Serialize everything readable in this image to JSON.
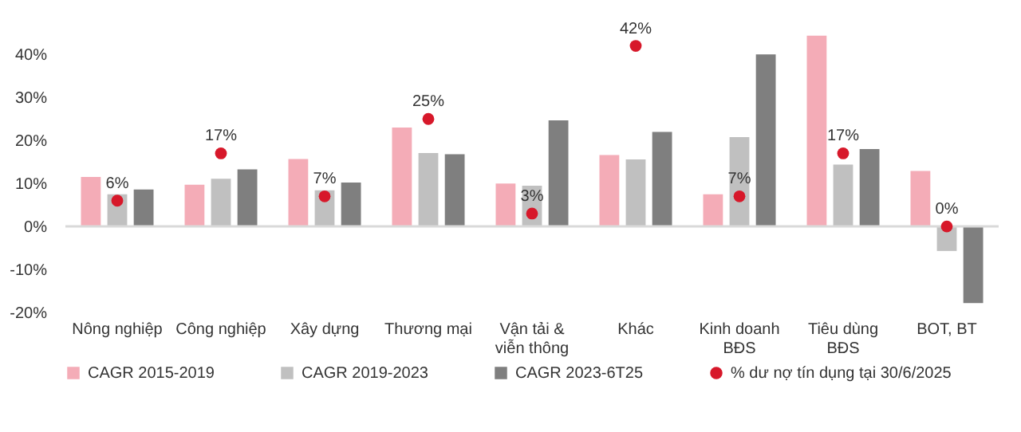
{
  "chart_data": {
    "type": "bar",
    "categories": [
      "Nông nghiệp",
      "Công nghiệp",
      "Xây dựng",
      "Thương mại",
      "Vận tải & viễn thông",
      "Khác",
      "Kinh doanh BĐS",
      "Tiêu dùng BĐS",
      "BOT, BT"
    ],
    "series": [
      {
        "name": "CAGR 2015-2019",
        "color": "#f4acb7",
        "values": [
          11.5,
          9.7,
          15.7,
          23,
          10,
          16.6,
          7.5,
          44.4,
          12.9
        ]
      },
      {
        "name": "CAGR 2019-2023",
        "color": "#c0c0c0",
        "values": [
          7.5,
          11.1,
          8.4,
          17.1,
          9.5,
          15.6,
          20.8,
          14.4,
          -5.7
        ]
      },
      {
        "name": "CAGR 2023-6T25",
        "color": "#7f7f7f",
        "values": [
          8.6,
          13.3,
          10.2,
          16.8,
          24.7,
          22,
          40,
          18,
          -17.8
        ]
      },
      {
        "name": "% dư nợ tín dụng tại 30/6/2025",
        "type": "scatter",
        "color": "#d7182a",
        "values": [
          6,
          17,
          7,
          25,
          3,
          42,
          7,
          17,
          0
        ],
        "value_labels": [
          "6%",
          "17%",
          "7%",
          "25%",
          "3%",
          "42%",
          "7%",
          "17%",
          "0%"
        ]
      }
    ],
    "ylim": [
      -20,
      46
    ],
    "yticks": [
      {
        "value": -20,
        "label": "-20%"
      },
      {
        "value": -10,
        "label": "-10%"
      },
      {
        "value": 0,
        "label": "0%"
      },
      {
        "value": 10,
        "label": "10%"
      },
      {
        "value": 20,
        "label": "20%"
      },
      {
        "value": 30,
        "label": "30%"
      },
      {
        "value": 40,
        "label": "40%"
      }
    ],
    "ref_lines": [
      {
        "axis": "y",
        "value": 0,
        "color": "#d9d9d9"
      }
    ],
    "grid": false,
    "legend": "bottom",
    "marker": "circle"
  }
}
